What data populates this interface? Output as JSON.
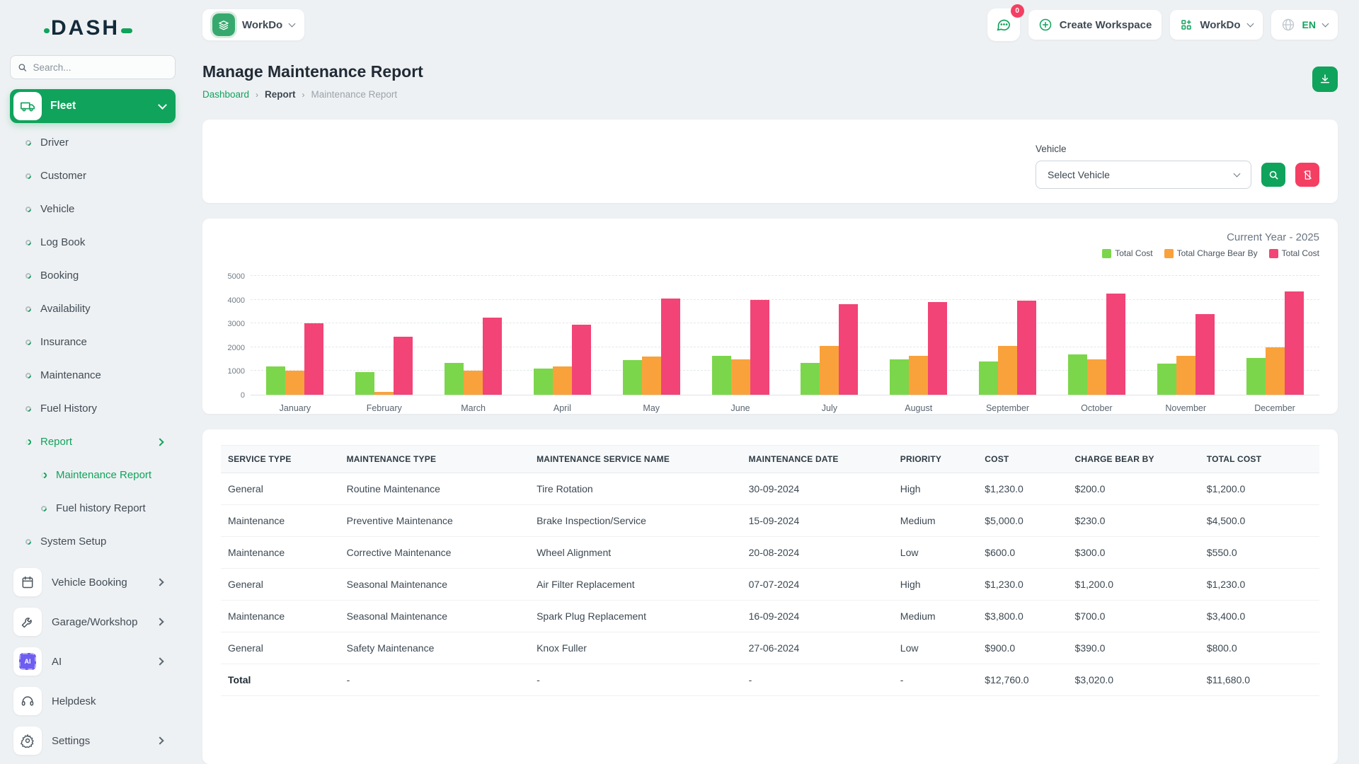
{
  "app": {
    "logo_text": "DASH",
    "search_placeholder": "Search..."
  },
  "topbar": {
    "workspace_switcher_label": "WorkDo",
    "messages_badge": "0",
    "create_workspace_label": "Create Workspace",
    "workdo_menu_label": "WorkDo",
    "language_code": "EN"
  },
  "sidebar": {
    "fleet_label": "Fleet",
    "fleet_menu": [
      {
        "label": "Driver"
      },
      {
        "label": "Customer"
      },
      {
        "label": "Vehicle"
      },
      {
        "label": "Log Book"
      },
      {
        "label": "Booking"
      },
      {
        "label": "Availability"
      },
      {
        "label": "Insurance"
      },
      {
        "label": "Maintenance"
      },
      {
        "label": "Fuel History"
      },
      {
        "label": "Report",
        "active": true,
        "chevron": true
      },
      {
        "label": "Maintenance Report",
        "sub": true,
        "active": true
      },
      {
        "label": "Fuel history Report",
        "sub": true
      },
      {
        "label": "System Setup"
      }
    ],
    "bottom_menu": [
      {
        "label": "Vehicle Booking",
        "icon": "calendar-icon",
        "chevron": true
      },
      {
        "label": "Garage/Workshop",
        "icon": "wrench-icon",
        "chevron": true
      },
      {
        "label": "AI",
        "icon": "ai-chip-icon",
        "chevron": true
      },
      {
        "label": "Helpdesk",
        "icon": "headset-icon",
        "chevron": false
      },
      {
        "label": "Settings",
        "icon": "gear-icon",
        "chevron": true
      }
    ]
  },
  "page": {
    "title": "Manage Maintenance Report",
    "breadcrumb": [
      "Dashboard",
      "Report",
      "Maintenance Report"
    ]
  },
  "filter": {
    "label": "Vehicle",
    "select_value": "Select Vehicle"
  },
  "chart_data": {
    "type": "bar",
    "title": "Current Year - 2025",
    "categories": [
      "January",
      "February",
      "March",
      "April",
      "May",
      "June",
      "July",
      "August",
      "September",
      "October",
      "November",
      "December"
    ],
    "series": [
      {
        "name": "Total Cost",
        "color": "#7cd64b",
        "values": [
          1200,
          950,
          1350,
          1100,
          1450,
          1650,
          1350,
          1500,
          1400,
          1700,
          1300,
          1550
        ]
      },
      {
        "name": "Total Charge Bear By",
        "color": "#f9a23b",
        "values": [
          1000,
          120,
          1000,
          1200,
          1600,
          1500,
          2050,
          1650,
          2050,
          1500,
          1650,
          2000
        ]
      },
      {
        "name": "Total Cost",
        "color": "#f24476",
        "values": [
          3000,
          2450,
          3250,
          2950,
          4050,
          4000,
          3800,
          3900,
          3950,
          4250,
          3400,
          4350
        ]
      }
    ],
    "ylim": [
      0,
      5000
    ],
    "yticks": [
      0,
      1000,
      2000,
      3000,
      4000,
      5000
    ],
    "legend_position": "top-right",
    "grid": true
  },
  "table": {
    "headers": [
      "SERVICE TYPE",
      "MAINTENANCE TYPE",
      "MAINTENANCE SERVICE NAME",
      "MAINTENANCE DATE",
      "PRIORITY",
      "COST",
      "CHARGE BEAR BY",
      "TOTAL COST"
    ],
    "col_widths": [
      "10.8%",
      "17.3%",
      "19.3%",
      "13.8%",
      "7.7%",
      "8.2%",
      "12.0%",
      "10.9%"
    ],
    "rows": [
      [
        "General",
        "Routine Maintenance",
        "Tire Rotation",
        "30-09-2024",
        "High",
        "$1,230.0",
        "$200.0",
        "$1,200.0"
      ],
      [
        "Maintenance",
        "Preventive Maintenance",
        "Brake Inspection/Service",
        "15-09-2024",
        "Medium",
        "$5,000.0",
        "$230.0",
        "$4,500.0"
      ],
      [
        "Maintenance",
        "Corrective Maintenance",
        "Wheel Alignment",
        "20-08-2024",
        "Low",
        "$600.0",
        "$300.0",
        "$550.0"
      ],
      [
        "General",
        "Seasonal Maintenance",
        "Air Filter Replacement",
        "07-07-2024",
        "High",
        "$1,230.0",
        "$1,200.0",
        "$1,230.0"
      ],
      [
        "Maintenance",
        "Seasonal Maintenance",
        "Spark Plug Replacement",
        "16-09-2024",
        "Medium",
        "$3,800.0",
        "$700.0",
        "$3,400.0"
      ],
      [
        "General",
        "Safety Maintenance",
        "Knox Fuller",
        "27-06-2024",
        "Low",
        "$900.0",
        "$390.0",
        "$800.0"
      ]
    ],
    "total_row": [
      "Total",
      "-",
      "-",
      "-",
      "-",
      "$12,760.0",
      "$3,020.0",
      "$11,680.0"
    ]
  },
  "colors": {
    "primary_green": "#10a35c",
    "rose": "#f43f63",
    "chart_green": "#7cd64b",
    "chart_orange": "#f9a23b",
    "chart_pink": "#f24476",
    "ai_purple": "#6d5df0"
  }
}
